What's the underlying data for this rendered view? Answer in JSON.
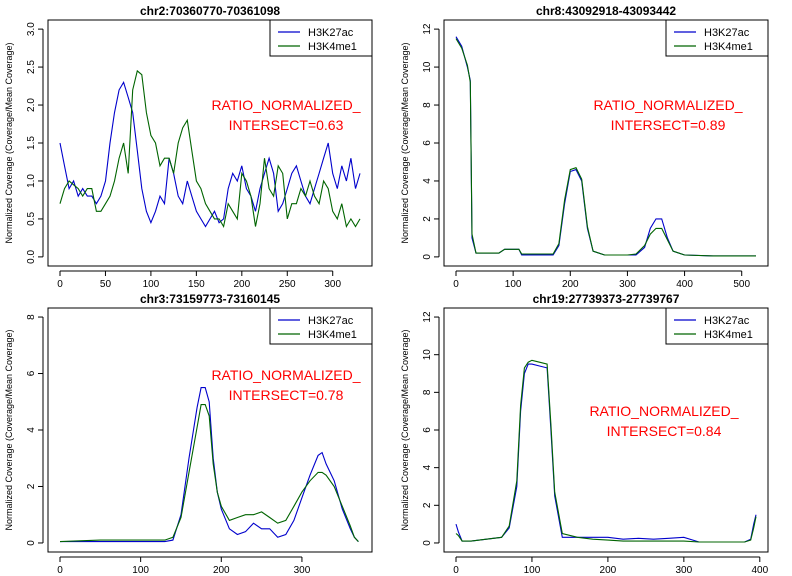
{
  "chart_data": [
    {
      "type": "line",
      "title": "chr2:70360770-70361098",
      "ylabel": "Normalized Coverage (Coverage/Mean Coverage)",
      "xlim": [
        0,
        330
      ],
      "ylim": [
        0,
        3.0
      ],
      "xticks": [
        0,
        50,
        100,
        150,
        200,
        250,
        300
      ],
      "yticks": [
        0.0,
        0.5,
        1.0,
        1.5,
        2.0,
        2.5,
        3.0
      ],
      "legend": "top-right",
      "annotation": [
        "RATIO_NORMALIZED_",
        "INTERSECT=0.63"
      ],
      "series": [
        {
          "name": "H3K27ac",
          "color": "#0000cc",
          "x": [
            0,
            5,
            10,
            15,
            20,
            25,
            30,
            35,
            40,
            45,
            50,
            55,
            60,
            65,
            70,
            75,
            80,
            85,
            90,
            95,
            100,
            105,
            110,
            115,
            120,
            125,
            130,
            135,
            140,
            145,
            150,
            155,
            160,
            165,
            170,
            175,
            180,
            185,
            190,
            195,
            200,
            205,
            210,
            215,
            220,
            225,
            230,
            235,
            240,
            245,
            250,
            255,
            260,
            265,
            270,
            275,
            280,
            285,
            290,
            295,
            300,
            305,
            310,
            315,
            320,
            325,
            330
          ],
          "y": [
            1.5,
            1.2,
            0.9,
            1.0,
            0.8,
            0.9,
            0.8,
            0.8,
            0.7,
            0.8,
            1.0,
            1.5,
            1.9,
            2.2,
            2.3,
            2.1,
            1.9,
            1.4,
            0.9,
            0.6,
            0.45,
            0.6,
            0.8,
            0.7,
            1.3,
            1.1,
            0.8,
            0.7,
            1.0,
            0.8,
            0.6,
            0.5,
            0.4,
            0.5,
            0.6,
            0.45,
            0.5,
            0.9,
            1.1,
            1.0,
            1.2,
            0.9,
            0.8,
            0.6,
            0.9,
            1.1,
            1.3,
            1.1,
            0.6,
            0.7,
            0.9,
            1.1,
            1.2,
            1.0,
            0.8,
            0.7,
            0.9,
            1.1,
            1.3,
            1.5,
            1.1,
            0.9,
            1.2,
            1.0,
            1.3,
            0.9,
            1.1
          ]
        },
        {
          "name": "H3K4me1",
          "color": "#006400",
          "x": [
            0,
            5,
            10,
            15,
            20,
            25,
            30,
            35,
            40,
            45,
            50,
            55,
            60,
            65,
            70,
            75,
            80,
            85,
            90,
            95,
            100,
            105,
            110,
            115,
            120,
            125,
            130,
            135,
            140,
            145,
            150,
            155,
            160,
            165,
            170,
            175,
            180,
            185,
            190,
            195,
            200,
            205,
            210,
            215,
            220,
            225,
            230,
            235,
            240,
            245,
            250,
            255,
            260,
            265,
            270,
            275,
            280,
            285,
            290,
            295,
            300,
            305,
            310,
            315,
            320,
            325,
            330
          ],
          "y": [
            0.7,
            0.9,
            1.0,
            0.95,
            0.9,
            0.8,
            0.9,
            0.9,
            0.6,
            0.6,
            0.7,
            0.8,
            1.0,
            1.3,
            1.5,
            1.1,
            2.2,
            2.45,
            2.4,
            1.9,
            1.6,
            1.5,
            1.2,
            1.3,
            1.3,
            1.1,
            1.5,
            1.7,
            1.8,
            1.4,
            1.0,
            0.9,
            0.7,
            0.6,
            0.5,
            0.5,
            0.4,
            0.7,
            0.6,
            0.5,
            1.1,
            1.0,
            0.8,
            0.4,
            0.7,
            1.3,
            0.9,
            0.8,
            1.2,
            1.1,
            0.5,
            0.7,
            0.7,
            0.9,
            0.8,
            1.0,
            0.8,
            0.7,
            1.0,
            0.9,
            0.6,
            0.5,
            0.7,
            0.4,
            0.5,
            0.4,
            0.5
          ]
        }
      ]
    },
    {
      "type": "line",
      "title": "chr8:43092918-43093442",
      "ylabel": "Normalized Coverage (Coverage/Mean Coverage)",
      "xlim": [
        0,
        525
      ],
      "ylim": [
        0,
        12
      ],
      "xticks": [
        0,
        100,
        200,
        300,
        400,
        500
      ],
      "yticks": [
        0,
        2,
        4,
        6,
        8,
        10,
        12
      ],
      "legend": "top-right",
      "annotation": [
        "RATIO_NORMALIZED_",
        "INTERSECT=0.89"
      ],
      "series": [
        {
          "name": "H3K27ac",
          "color": "#0000cc",
          "x": [
            0,
            10,
            20,
            25,
            28,
            35,
            60,
            75,
            85,
            110,
            115,
            170,
            180,
            190,
            200,
            210,
            220,
            230,
            240,
            260,
            280,
            300,
            315,
            330,
            340,
            350,
            360,
            370,
            380,
            400,
            450,
            525
          ],
          "y": [
            11.6,
            11.1,
            10.0,
            9.3,
            1.0,
            0.2,
            0.2,
            0.2,
            0.4,
            0.4,
            0.1,
            0.1,
            0.6,
            2.8,
            4.5,
            4.6,
            4.0,
            1.5,
            0.3,
            0.1,
            0.1,
            0.1,
            0.1,
            0.5,
            1.5,
            2.0,
            2.0,
            1.0,
            0.3,
            0.1,
            0.05,
            0.05
          ]
        },
        {
          "name": "H3K4me1",
          "color": "#006400",
          "x": [
            0,
            10,
            20,
            25,
            28,
            35,
            60,
            75,
            85,
            110,
            115,
            170,
            180,
            190,
            200,
            210,
            220,
            230,
            240,
            260,
            280,
            300,
            315,
            330,
            340,
            350,
            360,
            370,
            380,
            400,
            450,
            525
          ],
          "y": [
            11.5,
            11.0,
            10.1,
            9.2,
            1.2,
            0.2,
            0.2,
            0.2,
            0.4,
            0.4,
            0.15,
            0.15,
            0.7,
            3.0,
            4.6,
            4.7,
            4.1,
            1.6,
            0.3,
            0.1,
            0.1,
            0.1,
            0.15,
            0.6,
            1.2,
            1.5,
            1.5,
            0.9,
            0.3,
            0.1,
            0.05,
            0.05
          ]
        }
      ]
    },
    {
      "type": "line",
      "title": "chr3:73159773-73160145",
      "ylabel": "Normalized Coverage (Coverage/Mean Coverage)",
      "xlim": [
        0,
        372
      ],
      "ylim": [
        0,
        8
      ],
      "xticks": [
        0,
        100,
        200,
        300
      ],
      "yticks": [
        0,
        2,
        4,
        6,
        8
      ],
      "legend": "top-right",
      "annotation": [
        "RATIO_NORMALIZED_",
        "INTERSECT=0.78"
      ],
      "series": [
        {
          "name": "H3K27ac",
          "color": "#0000cc",
          "x": [
            0,
            50,
            100,
            130,
            140,
            150,
            160,
            170,
            175,
            180,
            185,
            190,
            195,
            200,
            210,
            220,
            230,
            240,
            250,
            260,
            270,
            280,
            290,
            300,
            310,
            320,
            325,
            330,
            340,
            350,
            360,
            365,
            370
          ],
          "y": [
            0.05,
            0.05,
            0.05,
            0.05,
            0.1,
            1.0,
            3.0,
            4.8,
            5.5,
            5.5,
            5.0,
            3.0,
            1.8,
            1.2,
            0.5,
            0.3,
            0.4,
            0.7,
            0.5,
            0.5,
            0.2,
            0.3,
            0.8,
            1.6,
            2.4,
            3.1,
            3.2,
            2.8,
            2.2,
            1.2,
            0.5,
            0.2,
            0.05
          ]
        },
        {
          "name": "H3K4me1",
          "color": "#006400",
          "x": [
            0,
            50,
            100,
            130,
            140,
            150,
            160,
            170,
            175,
            180,
            185,
            190,
            195,
            200,
            210,
            220,
            230,
            240,
            250,
            260,
            270,
            280,
            290,
            300,
            310,
            320,
            325,
            330,
            340,
            350,
            360,
            365,
            370
          ],
          "y": [
            0.05,
            0.1,
            0.1,
            0.1,
            0.2,
            0.9,
            2.5,
            4.1,
            4.9,
            4.9,
            4.5,
            2.8,
            1.8,
            1.3,
            0.8,
            0.9,
            1.0,
            1.0,
            1.1,
            0.9,
            0.7,
            0.8,
            1.3,
            1.8,
            2.2,
            2.5,
            2.5,
            2.4,
            2.0,
            1.3,
            0.6,
            0.2,
            0.05
          ]
        }
      ]
    },
    {
      "type": "line",
      "title": "chr19:27739373-27739767",
      "ylabel": "Normalized Coverage (Coverage/Mean Coverage)",
      "xlim": [
        0,
        395
      ],
      "ylim": [
        0,
        12
      ],
      "xticks": [
        0,
        100,
        200,
        300,
        400
      ],
      "yticks": [
        0,
        2,
        4,
        6,
        8,
        10,
        12
      ],
      "legend": "top-right",
      "annotation": [
        "RATIO_NORMALIZED_",
        "INTERSECT=0.84"
      ],
      "series": [
        {
          "name": "H3K27ac",
          "color": "#0000cc",
          "x": [
            0,
            3,
            8,
            20,
            40,
            60,
            70,
            80,
            85,
            90,
            95,
            100,
            110,
            120,
            125,
            130,
            140,
            160,
            180,
            200,
            220,
            240,
            260,
            280,
            300,
            320,
            340,
            360,
            380,
            388,
            392,
            395
          ],
          "y": [
            1.0,
            0.6,
            0.1,
            0.1,
            0.2,
            0.3,
            0.8,
            3.0,
            7.0,
            9.0,
            9.5,
            9.5,
            9.4,
            9.3,
            6.0,
            2.5,
            0.3,
            0.3,
            0.3,
            0.3,
            0.2,
            0.25,
            0.2,
            0.25,
            0.3,
            0.05,
            0.05,
            0.05,
            0.05,
            0.2,
            1.0,
            1.5
          ]
        },
        {
          "name": "H3K4me1",
          "color": "#006400",
          "x": [
            0,
            3,
            8,
            20,
            40,
            60,
            70,
            80,
            85,
            90,
            95,
            100,
            110,
            120,
            125,
            130,
            140,
            160,
            180,
            200,
            220,
            240,
            260,
            280,
            300,
            320,
            340,
            360,
            380,
            388,
            392,
            395
          ],
          "y": [
            0.5,
            0.4,
            0.1,
            0.1,
            0.2,
            0.3,
            0.9,
            3.3,
            7.3,
            9.3,
            9.6,
            9.7,
            9.6,
            9.5,
            6.3,
            2.7,
            0.5,
            0.3,
            0.2,
            0.15,
            0.1,
            0.1,
            0.1,
            0.1,
            0.1,
            0.05,
            0.05,
            0.05,
            0.05,
            0.15,
            0.8,
            1.4
          ]
        }
      ]
    }
  ]
}
